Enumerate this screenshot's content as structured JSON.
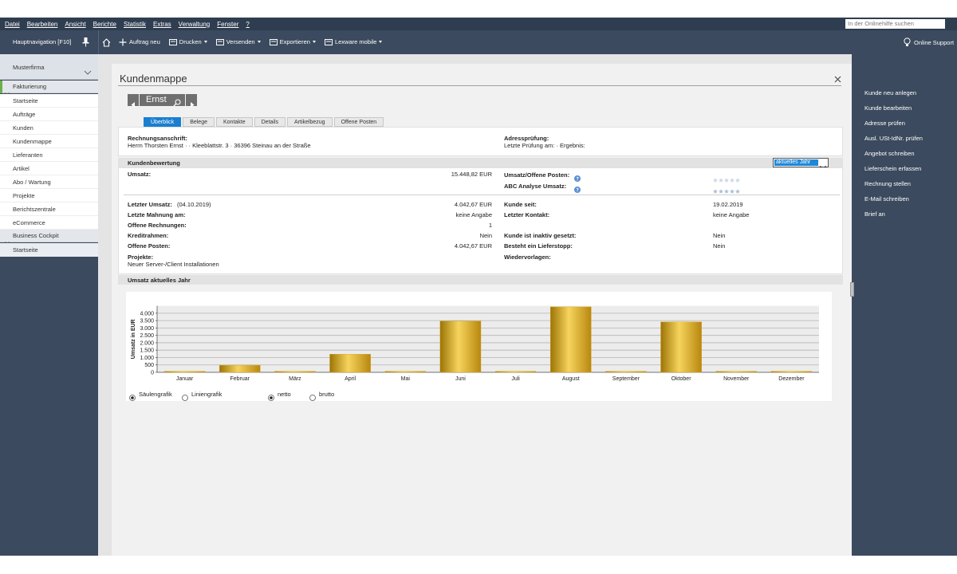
{
  "menu": [
    "Datei",
    "Bearbeiten",
    "Ansicht",
    "Berichte",
    "Statistik",
    "Extras",
    "Verwaltung",
    "Fenster",
    "?"
  ],
  "search_placeholder": "In der Onlinehilfe suchen",
  "toolbar": {
    "nav_title": "Hauptnavigation [F10]",
    "buttons": [
      {
        "label": "Auftrag neu",
        "dropdown": false
      },
      {
        "label": "Drucken",
        "dropdown": true
      },
      {
        "label": "Versenden",
        "dropdown": true
      },
      {
        "label": "Exportieren",
        "dropdown": true
      },
      {
        "label": "Lexware mobile",
        "dropdown": true
      }
    ],
    "support": "Online Support"
  },
  "nav": {
    "company": "Musterfirma",
    "groups": [
      {
        "label": "Fakturierung",
        "items": [
          "Startseite",
          "Aufträge",
          "Kunden",
          "Kundenmappe",
          "Lieferanten",
          "Artikel",
          "Abo / Wartung",
          "Projekte",
          "Berichtszentrale",
          "eCommerce"
        ]
      },
      {
        "label": "Business Cockpit",
        "items": [
          "Startseite"
        ]
      }
    ]
  },
  "actions": [
    "Kunde neu anlegen",
    "Kunde bearbeiten",
    "Adresse prüfen",
    "Ausl. USt-IdNr. prüfen",
    "Angebot schreiben",
    "Lieferschein erfassen",
    "Rechnung stellen",
    "E-Mail schreiben",
    "Brief an"
  ],
  "main": {
    "title": "Kundenmappe",
    "customer": "Ernst",
    "tabs": [
      "Überblick",
      "Belege",
      "Kontakte",
      "Details",
      "Artikelbezug",
      "Offene Posten"
    ],
    "address": {
      "label": "Rechnungsanschrift:",
      "value": "Herrn Thorsten Ernst · · Kleeblattstr. 3 · 36396 Steinau an der Straße"
    },
    "address_check": {
      "label": "Adressprüfung:",
      "value": "Letzte Prüfung am: · Ergebnis:"
    },
    "rating": {
      "header": "Kundenbewertung",
      "period": "aktuelles Jahr",
      "summary_left": [
        {
          "label": "Umsatz:",
          "value": "15.448,82 EUR"
        }
      ],
      "summary_right": [
        {
          "label": "Umsatz/Offene Posten:"
        },
        {
          "label": "ABC Analyse Umsatz:"
        }
      ],
      "details_left": [
        {
          "label": "Letzter Umsatz:",
          "note": "(04.10.2019)",
          "value": "4.042,67 EUR"
        },
        {
          "label": "Letzte Mahnung am:",
          "value": "keine Angabe"
        },
        {
          "label": "Offene Rechnungen:",
          "value": "1"
        },
        {
          "label": "Kreditrahmen:",
          "value": "Nein"
        },
        {
          "label": "Offene Posten:",
          "value": "4.042,67 EUR"
        },
        {
          "label": "Projekte:",
          "items": [
            "Neuer Server-/Client Installationen"
          ]
        }
      ],
      "details_right": [
        {
          "label": "Kunde seit:",
          "value": "19.02.2019"
        },
        {
          "label": "Letzter Kontakt:",
          "value": "keine Angabe"
        },
        {
          "label": "Kunde ist inaktiv gesetzt:",
          "value": "Nein"
        },
        {
          "label": "Besteht ein Lieferstopp:",
          "value": "Nein"
        },
        {
          "label": "Wiedervorlagen:"
        }
      ]
    }
  },
  "chart_data": {
    "type": "bar",
    "title": "Umsatz aktuelles Jahr",
    "y_label": "Umsatz in EUR",
    "categories": [
      "Januar",
      "Februar",
      "März",
      "April",
      "Mai",
      "Juni",
      "Juli",
      "August",
      "September",
      "Oktober",
      "November",
      "Dezember"
    ],
    "values": [
      0,
      480,
      0,
      1230,
      0,
      3470,
      0,
      4430,
      0,
      3410,
      0,
      0
    ],
    "color": "#d9a520",
    "ylim": [
      0,
      4500
    ],
    "yticks": [
      0,
      500,
      {
        "value": 1000,
        "label": "1.000"
      },
      {
        "value": 1500,
        "label": "1.500"
      },
      {
        "value": 2000,
        "label": "2.000"
      },
      {
        "value": 2500,
        "label": "2.500"
      },
      {
        "value": 3000,
        "label": "3.000"
      },
      {
        "value": 3500,
        "label": "3.500"
      },
      {
        "value": 4000,
        "label": "4.000"
      }
    ],
    "grid": true
  },
  "chart_controls": {
    "view_options": [
      {
        "label": "Säulengrafik",
        "checked": true
      },
      {
        "label": "Liniengrafik",
        "checked": false
      }
    ],
    "amount_options": [
      {
        "label": "netto",
        "checked": true
      },
      {
        "label": "brutto",
        "checked": false
      }
    ]
  }
}
